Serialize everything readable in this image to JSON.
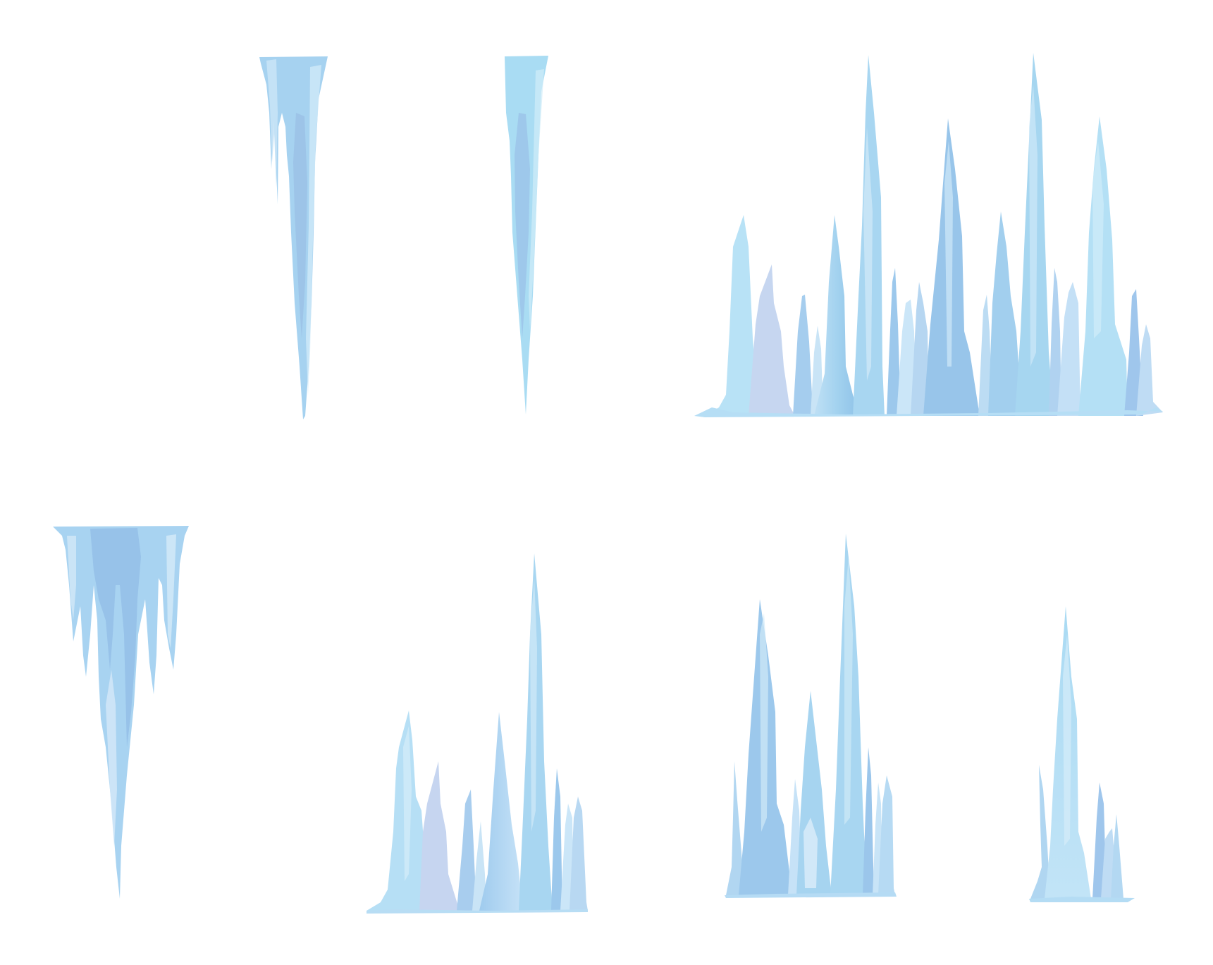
{
  "colors": {
    "background": "#ffffff",
    "ice_light": "#cfe6f6",
    "ice_mid": "#a9d8f2",
    "ice_blue": "#9fc8ec",
    "ice_deep": "#8fbfe8",
    "ice_lavender": "#c9d6f0",
    "ice_pale": "#dfeefa"
  },
  "clipart_items": [
    {
      "name": "hanging-icicle-cluster-narrow",
      "kind": "hanging-icicle"
    },
    {
      "name": "hanging-icicle-single",
      "kind": "hanging-icicle"
    },
    {
      "name": "ice-crystal-row-large",
      "kind": "ice-crystal-ground"
    },
    {
      "name": "hanging-icicle-cluster-wide",
      "kind": "hanging-icicle"
    },
    {
      "name": "ice-crystal-group-medium-left",
      "kind": "ice-crystal-ground"
    },
    {
      "name": "ice-crystal-group-medium-center",
      "kind": "ice-crystal-ground"
    },
    {
      "name": "ice-crystal-group-small-right",
      "kind": "ice-crystal-ground"
    }
  ]
}
